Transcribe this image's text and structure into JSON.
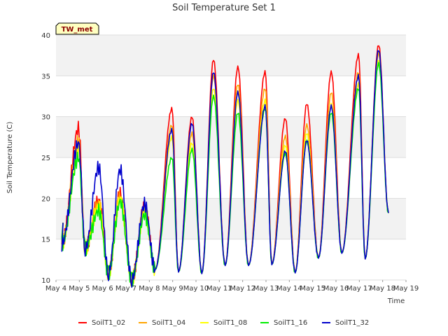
{
  "chart_data": {
    "type": "line",
    "title": "Soil Temperature Set 1",
    "xlabel": "Time",
    "ylabel": "Soil Temperature (C)",
    "badge": "TW_met",
    "ylim": [
      10,
      40
    ],
    "xlim": [
      0,
      15
    ],
    "yticks": [
      10,
      15,
      20,
      25,
      30,
      35,
      40
    ],
    "xticks": [
      "May 4",
      "May 5",
      "May 6",
      "May 7",
      "May 8",
      "May 9",
      "May 10",
      "May 11",
      "May 12",
      "May 13",
      "May 14",
      "May 15",
      "May 16",
      "May 17",
      "May 18",
      "May 19"
    ],
    "grid": true,
    "legend_position": "bottom",
    "series": [
      {
        "name": "SoilT1_02",
        "color": "#ff0000",
        "peaks": [
          28.6,
          19.8,
          20.6,
          19.0,
          31.0,
          30.0,
          37.0,
          36.1,
          35.5,
          29.8,
          31.6,
          35.5,
          37.6,
          38.8
        ]
      },
      {
        "name": "SoilT1_04",
        "color": "#ffa500",
        "peaks": [
          27.0,
          19.5,
          20.3,
          18.8,
          29.0,
          28.0,
          35.0,
          34.0,
          33.5,
          27.6,
          29.0,
          33.0,
          35.5,
          37.8
        ]
      },
      {
        "name": "SoilT1_08",
        "color": "#ffff00",
        "peaks": [
          26.0,
          19.0,
          20.0,
          18.5,
          27.5,
          26.8,
          33.5,
          32.0,
          32.0,
          26.5,
          28.0,
          31.5,
          34.0,
          37.0
        ]
      },
      {
        "name": "SoilT1_16",
        "color": "#00ee00",
        "peaks": [
          25.0,
          18.5,
          19.6,
          18.0,
          25.0,
          26.0,
          32.5,
          30.5,
          31.0,
          25.5,
          27.0,
          30.5,
          33.5,
          36.5
        ]
      },
      {
        "name": "SoilT1_32",
        "color": "#0000cc",
        "peaks": [
          26.8,
          23.8,
          23.5,
          19.3,
          28.4,
          29.2,
          35.5,
          33.0,
          31.3,
          25.8,
          27.1,
          31.3,
          35.0,
          38.2
        ]
      }
    ],
    "daily_minimum": [
      14.4,
      13.8,
      10.8,
      10.0,
      11.3,
      11.0,
      10.8,
      11.8,
      11.8,
      11.9,
      10.9,
      12.7,
      13.3,
      12.6
    ],
    "end_value": 18.2
  }
}
